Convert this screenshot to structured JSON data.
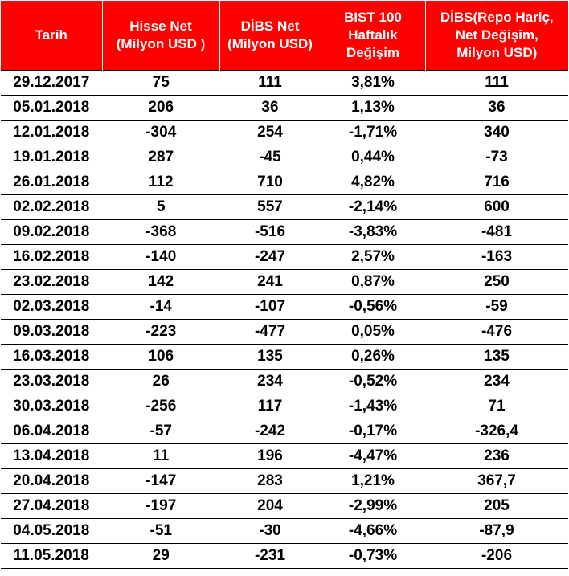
{
  "table": {
    "header_bg_color": "#ff0000",
    "header_text_color": "#ffffff",
    "columns": [
      {
        "lines": [
          "Tarih"
        ]
      },
      {
        "lines": [
          "Hisse Net",
          "(Milyon USD )"
        ]
      },
      {
        "lines": [
          "DİBS Net",
          "(Milyon USD)"
        ]
      },
      {
        "lines": [
          "BIST 100",
          "Haftalık",
          "Değişim"
        ]
      },
      {
        "lines": [
          "DİBS(Repo Hariç,",
          "Net Değişim,",
          "Milyon USD)"
        ]
      }
    ],
    "rows": [
      [
        "29.12.2017",
        "75",
        "111",
        "3,81%",
        "111"
      ],
      [
        "05.01.2018",
        "206",
        "36",
        "1,13%",
        "36"
      ],
      [
        "12.01.2018",
        "-304",
        "254",
        "-1,71%",
        "340"
      ],
      [
        "19.01.2018",
        "287",
        "-45",
        "0,44%",
        "-73"
      ],
      [
        "26.01.2018",
        "112",
        "710",
        "4,82%",
        "716"
      ],
      [
        "02.02.2018",
        "5",
        "557",
        "-2,14%",
        "600"
      ],
      [
        "09.02.2018",
        "-368",
        "-516",
        "-3,83%",
        "-481"
      ],
      [
        "16.02.2018",
        "-140",
        "-247",
        "2,57%",
        "-163"
      ],
      [
        "23.02.2018",
        "142",
        "241",
        "0,87%",
        "250"
      ],
      [
        "02.03.2018",
        "-14",
        "-107",
        "-0,56%",
        "-59"
      ],
      [
        "09.03.2018",
        "-223",
        "-477",
        "0,05%",
        "-476"
      ],
      [
        "16.03.2018",
        "106",
        "135",
        "0,26%",
        "135"
      ],
      [
        "23.03.2018",
        "26",
        "234",
        "-0,52%",
        "234"
      ],
      [
        "30.03.2018",
        "-256",
        "117",
        "-1,43%",
        "71"
      ],
      [
        "06.04.2018",
        "-57",
        "-242",
        "-0,17%",
        "-326,4"
      ],
      [
        "13.04.2018",
        "11",
        "196",
        "-4,47%",
        "236"
      ],
      [
        "20.04.2018",
        "-147",
        "283",
        "1,21%",
        "367,7"
      ],
      [
        "27.04.2018",
        "-197",
        "204",
        "-2,99%",
        "205"
      ],
      [
        "04.05.2018",
        "-51",
        "-30",
        "-4,66%",
        "-87,9"
      ],
      [
        "11.05.2018",
        "29",
        "-231",
        "-0,73%",
        "-206"
      ]
    ]
  }
}
